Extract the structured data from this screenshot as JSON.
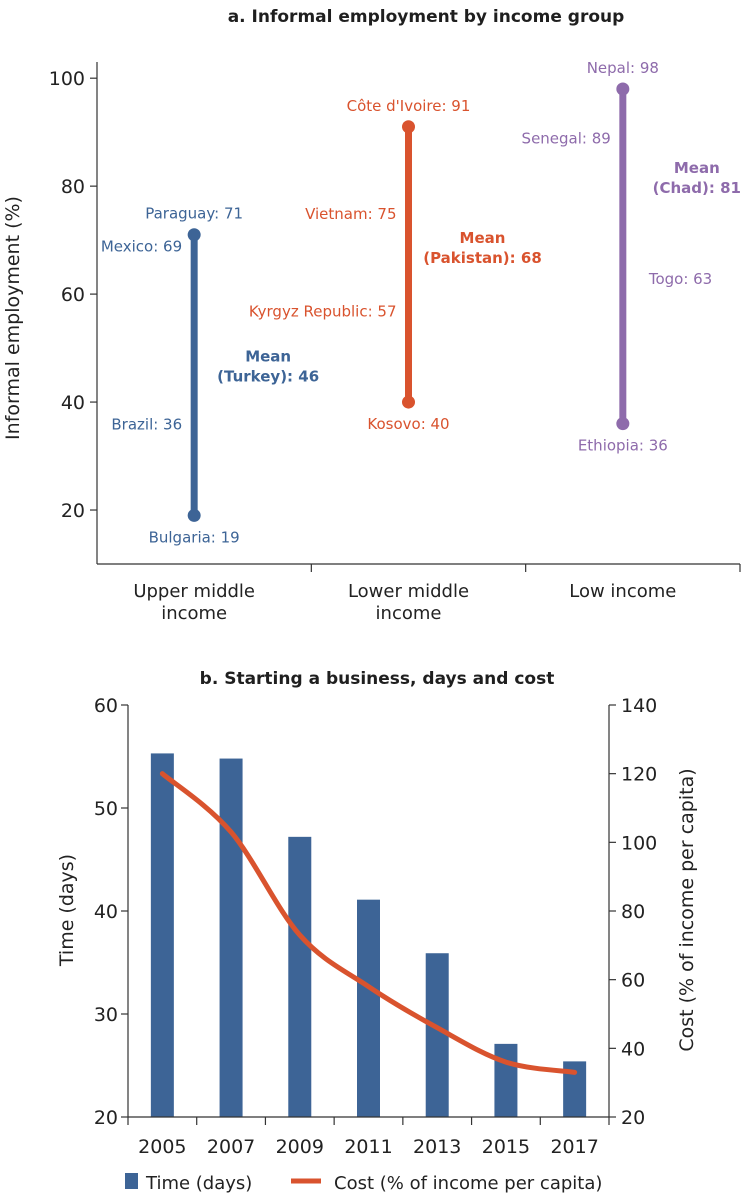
{
  "chart_data": [
    {
      "type": "range",
      "title": "a. Informal employment by income group",
      "ylabel": "Informal employment (%)",
      "ylim": [
        10,
        103
      ],
      "yticks": [
        20,
        40,
        60,
        80,
        100
      ],
      "categories": [
        {
          "name_lines": [
            "Upper middle",
            "income"
          ],
          "color": "#3d6496",
          "min": 19,
          "max": 71,
          "points": [
            {
              "label": "Paraguay: 71",
              "value": 71,
              "pos": "top",
              "endpoint": true
            },
            {
              "label": "Mexico: 69",
              "value": 69,
              "pos": "left"
            },
            {
              "label": "Brazil: 36",
              "value": 36,
              "pos": "left"
            },
            {
              "label": "Bulgaria: 19",
              "value": 19,
              "pos": "bottom",
              "endpoint": true
            }
          ],
          "mean_lines": [
            "Mean",
            "(Turkey): 46"
          ],
          "mean_value": 46
        },
        {
          "name_lines": [
            "Lower middle",
            "income"
          ],
          "color": "#d9532e",
          "min": 40,
          "max": 91,
          "points": [
            {
              "label": "Côte d'Ivoire: 91",
              "value": 91,
              "pos": "top",
              "endpoint": true
            },
            {
              "label": "Vietnam: 75",
              "value": 75,
              "pos": "left"
            },
            {
              "label": "Kyrgyz Republic: 57",
              "value": 57,
              "pos": "left"
            },
            {
              "label": "Kosovo: 40",
              "value": 40,
              "pos": "bottom",
              "endpoint": true
            }
          ],
          "mean_lines": [
            "Mean",
            "(Pakistan): 68"
          ],
          "mean_value": 68
        },
        {
          "name_lines": [
            "Low income"
          ],
          "color": "#8e6bab",
          "min": 36,
          "max": 98,
          "points": [
            {
              "label": "Nepal: 98",
              "value": 98,
              "pos": "top",
              "endpoint": true
            },
            {
              "label": "Senegal: 89",
              "value": 89,
              "pos": "left"
            },
            {
              "label": "Togo: 63",
              "value": 63,
              "pos": "right"
            },
            {
              "label": "Ethiopia: 36",
              "value": 36,
              "pos": "bottom",
              "endpoint": true
            }
          ],
          "mean_lines": [
            "Mean",
            "(Chad): 81"
          ],
          "mean_value": 81
        }
      ]
    },
    {
      "type": "bar+line",
      "title": "b. Starting a business, days and cost",
      "categories": [
        "2005",
        "2007",
        "2009",
        "2011",
        "2013",
        "2015",
        "2017"
      ],
      "ylabel": "Time (days)",
      "ylim": [
        20,
        60
      ],
      "yticks": [
        20,
        30,
        40,
        50,
        60
      ],
      "y2label": "Cost (% of income per capita)",
      "y2lim": [
        20,
        140
      ],
      "y2ticks": [
        20,
        40,
        60,
        80,
        100,
        120,
        140
      ],
      "bar_series": {
        "name": "Time (days)",
        "color": "#3d6496",
        "values": [
          55.3,
          54.8,
          47.2,
          41.1,
          35.9,
          27.1,
          25.4
        ]
      },
      "line_series": {
        "name": "Cost (% of income per capita)",
        "color": "#d9532e",
        "values": [
          120,
          103,
          73,
          58,
          46,
          36,
          33
        ]
      }
    }
  ]
}
